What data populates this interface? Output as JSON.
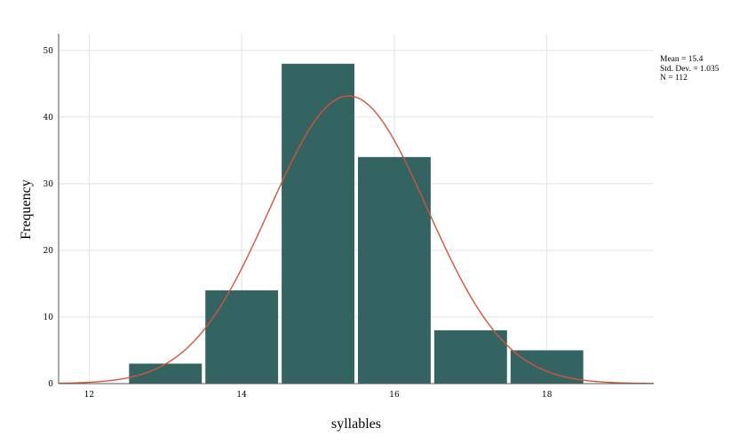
{
  "chart_data": {
    "type": "bar",
    "subtype": "histogram",
    "xlabel": "syllables",
    "ylabel": "Frequency",
    "x_ticks": [
      12,
      14,
      16,
      18
    ],
    "y_ticks": [
      0,
      10,
      20,
      30,
      40,
      50
    ],
    "xlim": [
      11.6,
      19.4
    ],
    "ylim": [
      0,
      52.5
    ],
    "bins": [
      {
        "center": 13,
        "value": 3
      },
      {
        "center": 14,
        "value": 14
      },
      {
        "center": 15,
        "value": 48
      },
      {
        "center": 16,
        "value": 34
      },
      {
        "center": 17,
        "value": 8
      },
      {
        "center": 18,
        "value": 5
      }
    ],
    "bin_width": 1,
    "normal_curve": {
      "mean": 15.4,
      "std_dev": 1.035,
      "n": 112
    },
    "grid": true,
    "colors": {
      "bar": "#336461",
      "curve": "#d1553a",
      "grid": "#e2e2e2",
      "axis": "#555555"
    }
  },
  "stats": {
    "mean": "Mean = 15.4",
    "std_dev": "Std. Dev. = 1.035",
    "n": "N = 112"
  }
}
